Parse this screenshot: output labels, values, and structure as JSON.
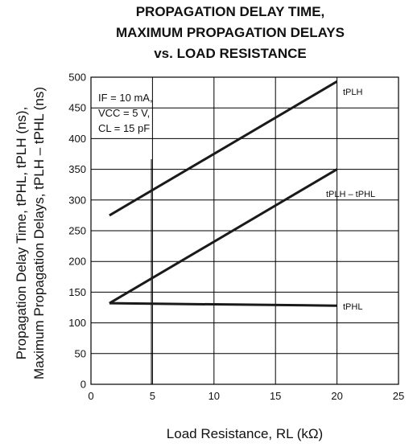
{
  "chart_data": {
    "type": "line",
    "title_lines": [
      "PROPAGATION DELAY TIME,",
      "MAXIMUM PROPAGATION DELAYS",
      "vs. LOAD RESISTANCE"
    ],
    "xlabel": "Load Resistance, RL (kΩ)",
    "ylabel_lines": [
      "Propagation Delay Time, tPHL, tPLH (ns),",
      "Maximum Propagation Delays, tPLH – tPHL (ns)"
    ],
    "xlim": [
      0,
      25
    ],
    "ylim": [
      0,
      500
    ],
    "x_ticks": [
      "0",
      "5",
      "10",
      "15",
      "20",
      "25"
    ],
    "y_ticks": [
      "0",
      "50",
      "100",
      "150",
      "200",
      "250",
      "300",
      "350",
      "400",
      "450",
      "500"
    ],
    "grid": true,
    "conditions": [
      "IF = 10 mA,",
      "VCC = 5 V,",
      "CL = 15 pF"
    ],
    "series": [
      {
        "name": "tPLH",
        "x": [
          1.5,
          20
        ],
        "y": [
          275,
          493
        ]
      },
      {
        "name": "tPLH – tPHL",
        "x": [
          1.5,
          20
        ],
        "y": [
          132,
          350
        ]
      },
      {
        "name": "tPHL",
        "x": [
          1.5,
          20
        ],
        "y": [
          132,
          128
        ]
      }
    ]
  }
}
